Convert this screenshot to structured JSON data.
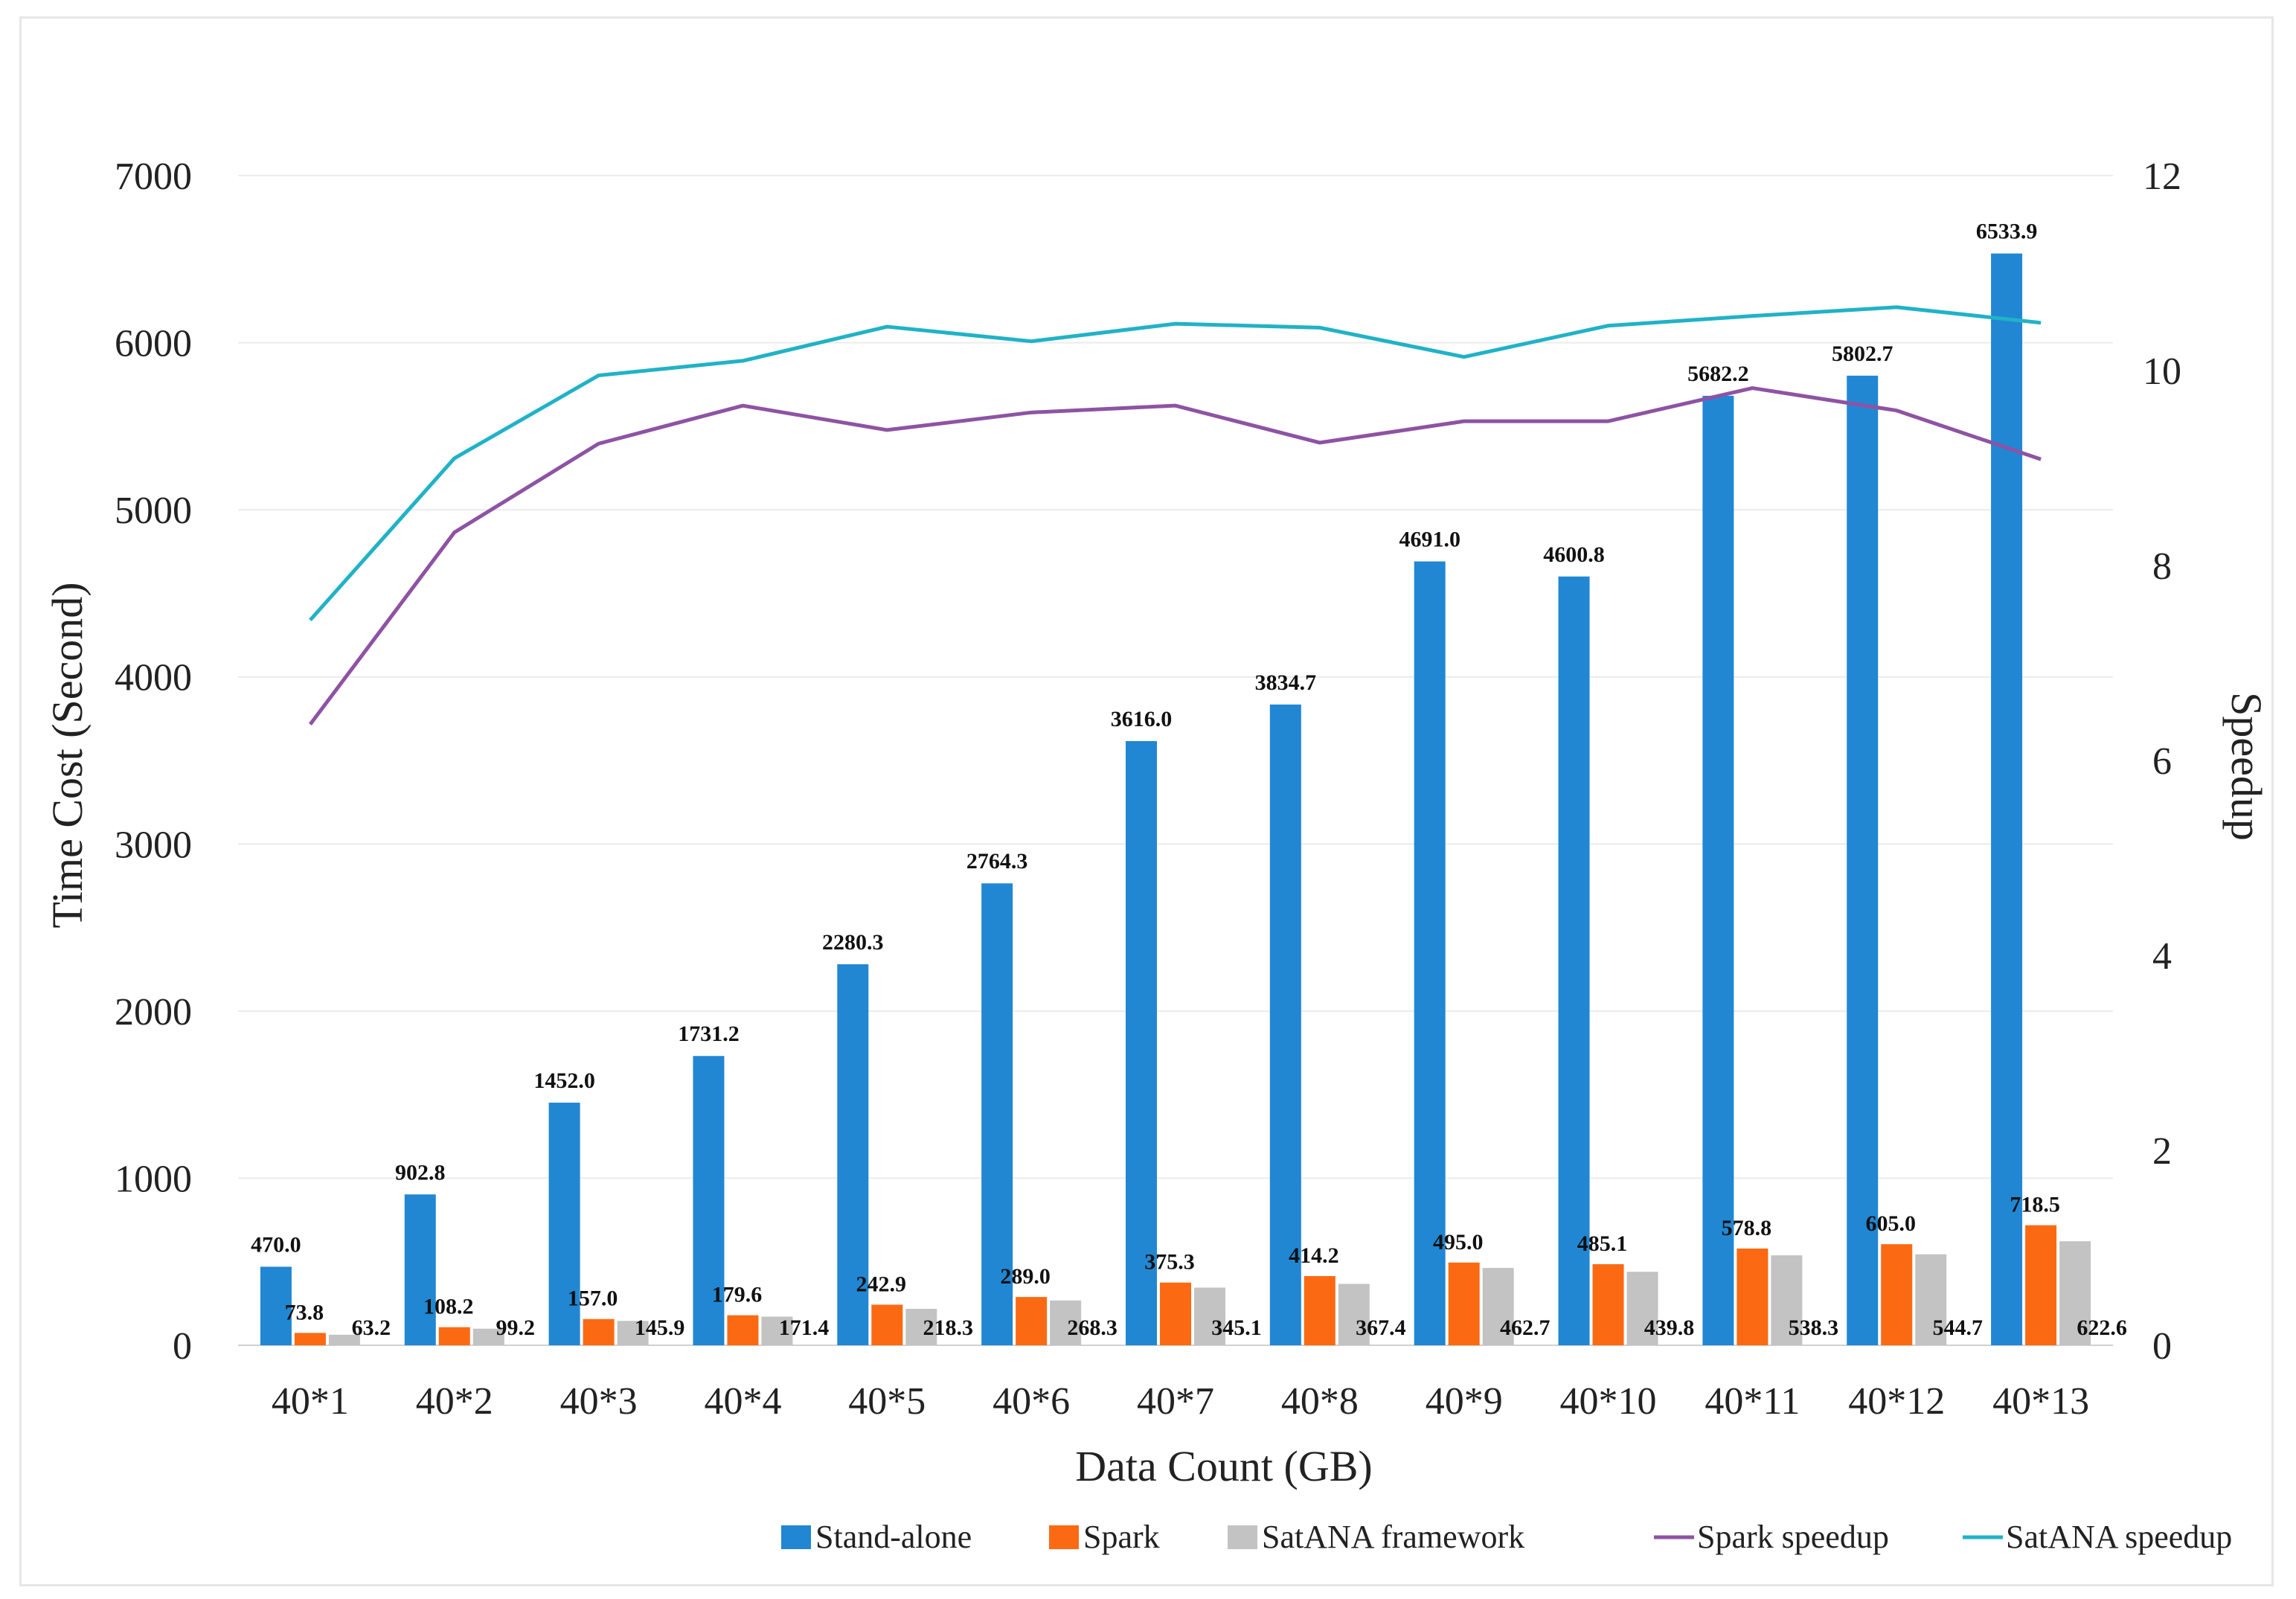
{
  "chart_data": {
    "type": "bar",
    "categories": [
      "40*1",
      "40*2",
      "40*3",
      "40*4",
      "40*5",
      "40*6",
      "40*7",
      "40*8",
      "40*9",
      "40*10",
      "40*11",
      "40*12",
      "40*13"
    ],
    "series": [
      {
        "name": "Stand-alone",
        "kind": "bar",
        "axis": "left",
        "color": "#2187d3",
        "values": [
          470.0,
          902.8,
          1452.0,
          1731.2,
          2280.3,
          2764.3,
          3616.0,
          3834.7,
          4691.0,
          4600.8,
          5682.2,
          5802.7,
          6533.9
        ],
        "labels": [
          "470.0",
          "902.8",
          "1452.0",
          "1731.2",
          "2280.3",
          "2764.3",
          "3616.0",
          "3834.7",
          "4691.0",
          "4600.8",
          "5682.2",
          "5802.7",
          "6533.9"
        ]
      },
      {
        "name": "Spark",
        "kind": "bar",
        "axis": "left",
        "color": "#fb6a12",
        "values": [
          73.8,
          108.2,
          157.0,
          179.6,
          242.9,
          289.0,
          375.3,
          414.2,
          495.0,
          485.1,
          578.8,
          605.0,
          718.5
        ],
        "labels": [
          "73.8",
          "108.2",
          "157.0",
          "179.6",
          "242.9",
          "289.0",
          "375.3",
          "414.2",
          "495.0",
          "485.1",
          "578.8",
          "605.0",
          "718.5"
        ]
      },
      {
        "name": "SatANA framework",
        "kind": "bar",
        "axis": "left",
        "color": "#c3c3c3",
        "values": [
          63.2,
          99.2,
          145.9,
          171.4,
          218.3,
          268.3,
          345.1,
          367.4,
          462.7,
          439.8,
          538.3,
          544.7,
          622.6
        ],
        "labels": [
          "63.2",
          "99.2",
          "145.9",
          "171.4",
          "218.3",
          "268.3",
          "345.1",
          "367.4",
          "462.7",
          "439.8",
          "538.3",
          "544.7",
          "622.6"
        ]
      },
      {
        "name": "Spark speedup",
        "kind": "line",
        "axis": "right",
        "color": "#8e53a3",
        "values": [
          6.37,
          8.34,
          9.25,
          9.64,
          9.39,
          9.57,
          9.64,
          9.26,
          9.48,
          9.48,
          9.82,
          9.59,
          9.09
        ]
      },
      {
        "name": "SatANA speedup",
        "kind": "line",
        "axis": "right",
        "color": "#21b2c6",
        "values": [
          7.44,
          9.1,
          9.95,
          10.1,
          10.45,
          10.3,
          10.48,
          10.44,
          10.14,
          10.46,
          10.56,
          10.65,
          10.49
        ]
      }
    ],
    "xlabel": "Data Count (GB)",
    "ylabel": "Time Cost (Second)",
    "y2label": "Speedup",
    "ylim": [
      0,
      7000
    ],
    "y2lim": [
      0,
      12
    ],
    "yticks": [
      "0",
      "1000",
      "2000",
      "3000",
      "4000",
      "5000",
      "6000",
      "7000"
    ],
    "y2ticks": [
      "0",
      "2",
      "4",
      "6",
      "8",
      "10",
      "12"
    ],
    "grid": true,
    "legend_position": "bottom-right"
  }
}
